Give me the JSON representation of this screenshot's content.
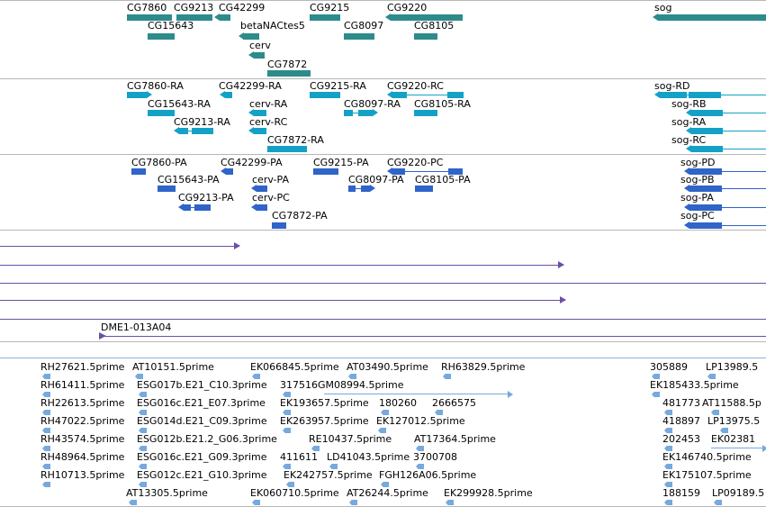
{
  "colors": {
    "gene": "#2e8b8b",
    "mrna": "#15a1c6",
    "protein": "#2f64c8",
    "clone": "#6b4fa9",
    "est": "#76a9de",
    "divider": "#b7b7b7",
    "divider_blue": "#8fb3d9"
  },
  "tracks": {
    "genes": {
      "features": [
        {
          "label": "CG7860"
        },
        {
          "label": "CG9213"
        },
        {
          "label": "CG42299"
        },
        {
          "label": "CG9215"
        },
        {
          "label": "CG9220"
        },
        {
          "label": "sog"
        },
        {
          "label": "CG15643"
        },
        {
          "label": "betaNACtes5"
        },
        {
          "label": "CG8097"
        },
        {
          "label": "CG8105"
        },
        {
          "label": "cerv"
        },
        {
          "label": "CG7872"
        }
      ]
    },
    "transcripts": {
      "features": [
        {
          "label": "CG7860-RA"
        },
        {
          "label": "CG42299-RA"
        },
        {
          "label": "CG9215-RA"
        },
        {
          "label": "CG9220-RC"
        },
        {
          "label": "sog-RD"
        },
        {
          "label": "CG15643-RA"
        },
        {
          "label": "cerv-RA"
        },
        {
          "label": "CG8097-RA"
        },
        {
          "label": "CG8105-RA"
        },
        {
          "label": "sog-RB"
        },
        {
          "label": "CG9213-RA"
        },
        {
          "label": "cerv-RC"
        },
        {
          "label": "sog-RA"
        },
        {
          "label": "CG7872-RA"
        },
        {
          "label": "sog-RC"
        }
      ]
    },
    "proteins": {
      "features": [
        {
          "label": "CG7860-PA"
        },
        {
          "label": "CG42299-PA"
        },
        {
          "label": "CG9215-PA"
        },
        {
          "label": "CG9220-PC"
        },
        {
          "label": "sog-PD"
        },
        {
          "label": "CG15643-PA"
        },
        {
          "label": "cerv-PA"
        },
        {
          "label": "CG8097-PA"
        },
        {
          "label": "CG8105-PA"
        },
        {
          "label": "sog-PB"
        },
        {
          "label": "CG9213-PA"
        },
        {
          "label": "cerv-PC"
        },
        {
          "label": "sog-PA"
        },
        {
          "label": "CG7872-PA"
        },
        {
          "label": "sog-PC"
        }
      ]
    },
    "clones": {
      "features": [
        {
          "label": ""
        },
        {
          "label": ""
        },
        {
          "label": ""
        },
        {
          "label": ""
        },
        {
          "label": "DME1-013A04"
        }
      ]
    },
    "ests": {
      "features": [
        {
          "label": "RH27621.5prime"
        },
        {
          "label": "AT10151.5prime"
        },
        {
          "label": "EK066845.5prime"
        },
        {
          "label": "AT03490.5prime"
        },
        {
          "label": "RH63829.5prime"
        },
        {
          "label": "305889"
        },
        {
          "label": "LP13989.5"
        },
        {
          "label": "RH61411.5prime"
        },
        {
          "label": "ESG017b.E21_C10.3prime"
        },
        {
          "label": "317516GM08994.5prime"
        },
        {
          "label": "EK185433.5prime"
        },
        {
          "label": "RH22613.5prime"
        },
        {
          "label": "ESG016c.E21_E07.3prime"
        },
        {
          "label": "EK193657.5prime"
        },
        {
          "label": "180260"
        },
        {
          "label": "2666575"
        },
        {
          "label": "481773"
        },
        {
          "label": "AT11588.5p"
        },
        {
          "label": "RH47022.5prime"
        },
        {
          "label": "ESG014d.E21_C09.3prime"
        },
        {
          "label": "EK263957.5prime"
        },
        {
          "label": "EK127012.5prime"
        },
        {
          "label": "418897"
        },
        {
          "label": "LP13975.5"
        },
        {
          "label": "RH43574.5prime"
        },
        {
          "label": "ESG012b.E21.2_G06.3prime"
        },
        {
          "label": "RE10437.5prime"
        },
        {
          "label": "AT17364.5prime"
        },
        {
          "label": "202453"
        },
        {
          "label": "EK02381"
        },
        {
          "label": "RH48964.5prime"
        },
        {
          "label": "ESG016c.E21_G09.3prime"
        },
        {
          "label": "411611"
        },
        {
          "label": "LD41043.5prime"
        },
        {
          "label": "3700708"
        },
        {
          "label": "EK146740.5prime"
        },
        {
          "label": "RH10713.5prime"
        },
        {
          "label": "ESG012c.E21_G10.3prime"
        },
        {
          "label": "EK242757.5prime"
        },
        {
          "label": "FGH126A06.5prime"
        },
        {
          "label": "EK175107.5prime"
        },
        {
          "label": "AT13305.5prime"
        },
        {
          "label": "EK060710.5prime"
        },
        {
          "label": "AT26244.5prime"
        },
        {
          "label": "EK299928.5prime"
        },
        {
          "label": "188159"
        },
        {
          "label": "LP09189.5"
        }
      ]
    }
  }
}
